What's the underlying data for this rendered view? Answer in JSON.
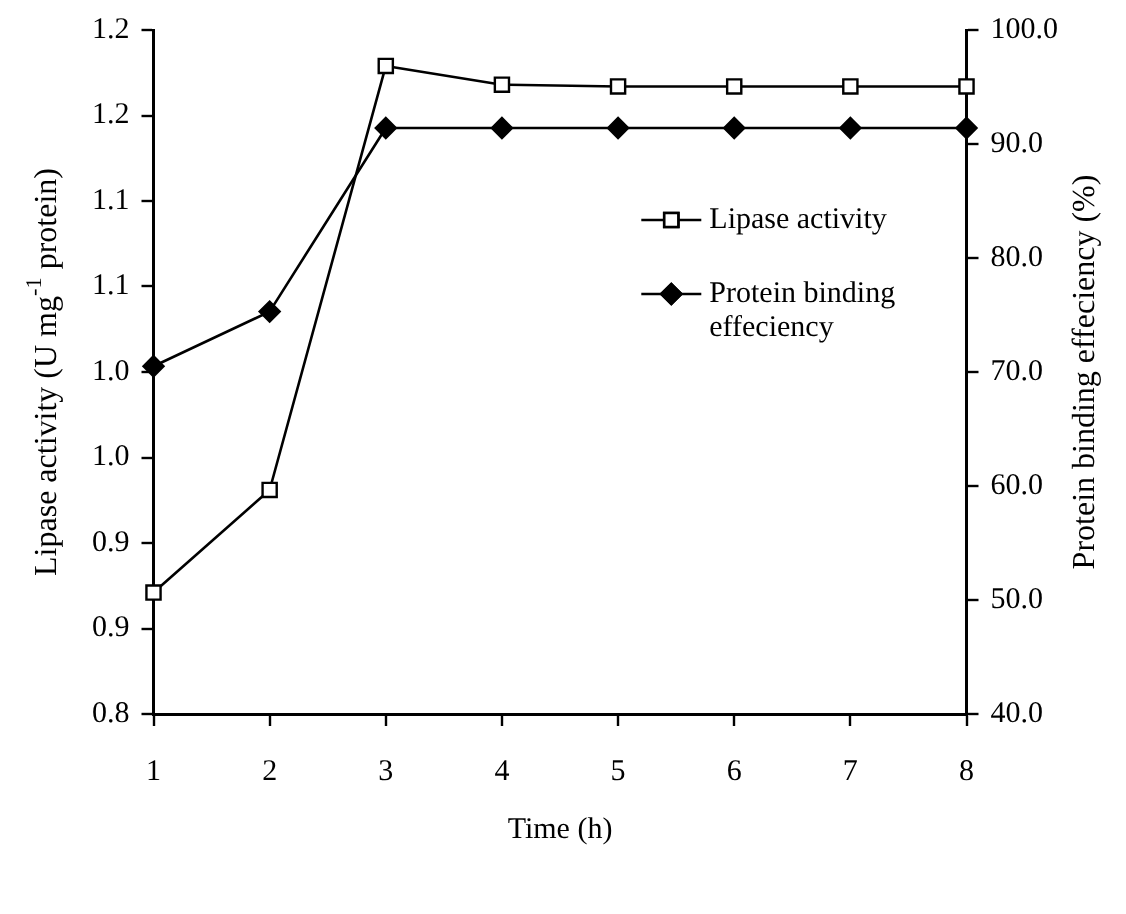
{
  "chart_data": {
    "type": "line",
    "xlabel": "Time (h)",
    "ylabel": "Lipase activity (U mg$^{-1}$ protein)",
    "y2label": "Protein binding effeciency (%)",
    "x": [
      1,
      2,
      3,
      4,
      5,
      6,
      7,
      8
    ],
    "series": [
      {
        "name": "Lipase activity",
        "color": "#000000",
        "marker": "square",
        "values": [
          0.871,
          0.931,
          1.179,
          1.168,
          1.167,
          1.167,
          1.167,
          1.167
        ]
      },
      {
        "name": "Protein binding effeciency",
        "color": "#000000",
        "marker": "diamond",
        "axis": "y2",
        "values": [
          70.5,
          75.3,
          91.4,
          91.4,
          91.4,
          91.4,
          91.4,
          91.4
        ]
      }
    ],
    "xlim": [
      1,
      8
    ],
    "xticks": [
      1,
      2,
      3,
      4,
      5,
      6,
      7,
      8
    ],
    "ylim": [
      0.8,
      1.2
    ],
    "yticks": [
      {
        "value": 0.8,
        "label": "0.8"
      },
      {
        "value": 0.85,
        "label": "0.9"
      },
      {
        "value": 0.9,
        "label": "0.9"
      },
      {
        "value": 0.95,
        "label": "1.0"
      },
      {
        "value": 1.0,
        "label": "1.0"
      },
      {
        "value": 1.05,
        "label": "1.1"
      },
      {
        "value": 1.1,
        "label": "1.1"
      },
      {
        "value": 1.15,
        "label": "1.2"
      },
      {
        "value": 1.2,
        "label": "1.2"
      }
    ],
    "y2lim": [
      40,
      100
    ],
    "y2ticks": [
      {
        "value": 40,
        "label": "40.0"
      },
      {
        "value": 50,
        "label": "50.0"
      },
      {
        "value": 60,
        "label": "60.0"
      },
      {
        "value": 70,
        "label": "70.0"
      },
      {
        "value": 80,
        "label": "80.0"
      },
      {
        "value": 90,
        "label": "90.0"
      },
      {
        "value": 100,
        "label": "100.0"
      }
    ],
    "grid": false,
    "legend": "right",
    "line_style": "solid"
  }
}
